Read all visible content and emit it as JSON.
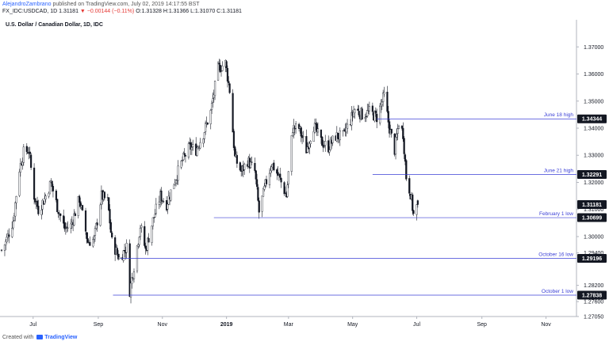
{
  "header": {
    "author": "AlejandroZambrano",
    "published_text": "published on TradingView.com, July 02, 2019 14:17:55 BST",
    "symbol_line": "FX_IDC:USDCAD, 1D 1.31181",
    "change_icon": "down-triangle-icon",
    "change_text": "−0.00144 (−0.11%)",
    "ohlc_text": "O:1.31328 H:1.31366 L:1.31070 C:1.31181"
  },
  "footer": {
    "created_with": "Created with",
    "brand": "TradingView"
  },
  "colors": {
    "candle": "#131722",
    "level_line": "#3a3fd6",
    "label_bg": "#131722",
    "label_fg": "#ffffff",
    "axis_text": "#131722"
  },
  "chart_data": {
    "type": "candlestick",
    "title": "U.S. Dollar / Canadian Dollar, 1D, IDC",
    "xlabel": "",
    "ylabel": "",
    "ylim": [
      1.2705,
      1.3765
    ],
    "grid": false,
    "x_tick_labels": [
      "Jul",
      "Sep",
      "Nov",
      "2019",
      "Mar",
      "May",
      "Jul",
      "Sep",
      "Nov"
    ],
    "y_tick_labels": [
      "1.37000",
      "1.36000",
      "1.35000",
      "1.34000",
      "1.33000",
      "1.32000",
      "1.31000",
      "1.30000",
      "1.29400",
      "1.28200",
      "1.27600",
      "1.27050"
    ],
    "price_labels": [
      "1.34344",
      "1.32291",
      "1.31181",
      "1.30699",
      "1.29196",
      "1.27838"
    ],
    "levels": [
      {
        "label": "June 18 high",
        "value": 1.34344,
        "from": "2019-05-24"
      },
      {
        "label": "June 21 high",
        "value": 1.32291,
        "from": "2019-05-20"
      },
      {
        "label": "February 1 low",
        "value": 1.30699,
        "from": "2018-12-20"
      },
      {
        "label": "October 16 low",
        "value": 1.29196,
        "from": "2018-09-22"
      },
      {
        "label": "October 1 low",
        "value": 1.27838,
        "from": "2018-09-15"
      }
    ],
    "price_path": [
      [
        "2018-06-01",
        1.295
      ],
      [
        "2018-06-05",
        1.298
      ],
      [
        "2018-06-12",
        1.306
      ],
      [
        "2018-06-18",
        1.325
      ],
      [
        "2018-06-22",
        1.331
      ],
      [
        "2018-06-27",
        1.332
      ],
      [
        "2018-07-02",
        1.315
      ],
      [
        "2018-07-06",
        1.31
      ],
      [
        "2018-07-12",
        1.314
      ],
      [
        "2018-07-18",
        1.32
      ],
      [
        "2018-07-24",
        1.311
      ],
      [
        "2018-07-31",
        1.303
      ],
      [
        "2018-08-06",
        1.304
      ],
      [
        "2018-08-14",
        1.314
      ],
      [
        "2018-08-22",
        1.298
      ],
      [
        "2018-08-28",
        1.299
      ],
      [
        "2018-09-04",
        1.315
      ],
      [
        "2018-09-10",
        1.313
      ],
      [
        "2018-09-14",
        1.298
      ],
      [
        "2018-09-21",
        1.292
      ],
      [
        "2018-09-28",
        1.296
      ],
      [
        "2018-10-01",
        1.28
      ],
      [
        "2018-10-05",
        1.289
      ],
      [
        "2018-10-11",
        1.304
      ],
      [
        "2018-10-16",
        1.295
      ],
      [
        "2018-10-23",
        1.306
      ],
      [
        "2018-10-30",
        1.315
      ],
      [
        "2018-11-05",
        1.312
      ],
      [
        "2018-11-12",
        1.32
      ],
      [
        "2018-11-20",
        1.328
      ],
      [
        "2018-11-27",
        1.333
      ],
      [
        "2018-12-03",
        1.332
      ],
      [
        "2018-12-10",
        1.338
      ],
      [
        "2018-12-17",
        1.346
      ],
      [
        "2018-12-24",
        1.362
      ],
      [
        "2018-12-31",
        1.364
      ],
      [
        "2019-01-04",
        1.354
      ],
      [
        "2019-01-09",
        1.329
      ],
      [
        "2019-01-15",
        1.324
      ],
      [
        "2019-01-21",
        1.328
      ],
      [
        "2019-01-28",
        1.324
      ],
      [
        "2019-02-01",
        1.309
      ],
      [
        "2019-02-07",
        1.319
      ],
      [
        "2019-02-13",
        1.327
      ],
      [
        "2019-02-20",
        1.322
      ],
      [
        "2019-02-27",
        1.315
      ],
      [
        "2019-03-05",
        1.34
      ],
      [
        "2019-03-11",
        1.34
      ],
      [
        "2019-03-18",
        1.332
      ],
      [
        "2019-03-25",
        1.341
      ],
      [
        "2019-04-01",
        1.335
      ],
      [
        "2019-04-08",
        1.333
      ],
      [
        "2019-04-15",
        1.337
      ],
      [
        "2019-04-22",
        1.337
      ],
      [
        "2019-04-29",
        1.343
      ],
      [
        "2019-05-03",
        1.347
      ],
      [
        "2019-05-10",
        1.345
      ],
      [
        "2019-05-17",
        1.346
      ],
      [
        "2019-05-24",
        1.344
      ],
      [
        "2019-05-31",
        1.352
      ],
      [
        "2019-06-05",
        1.34
      ],
      [
        "2019-06-10",
        1.332
      ],
      [
        "2019-06-14",
        1.342
      ],
      [
        "2019-06-18",
        1.338
      ],
      [
        "2019-06-21",
        1.322
      ],
      [
        "2019-06-25",
        1.316
      ],
      [
        "2019-06-28",
        1.308
      ],
      [
        "2019-07-02",
        1.3118
      ]
    ]
  }
}
